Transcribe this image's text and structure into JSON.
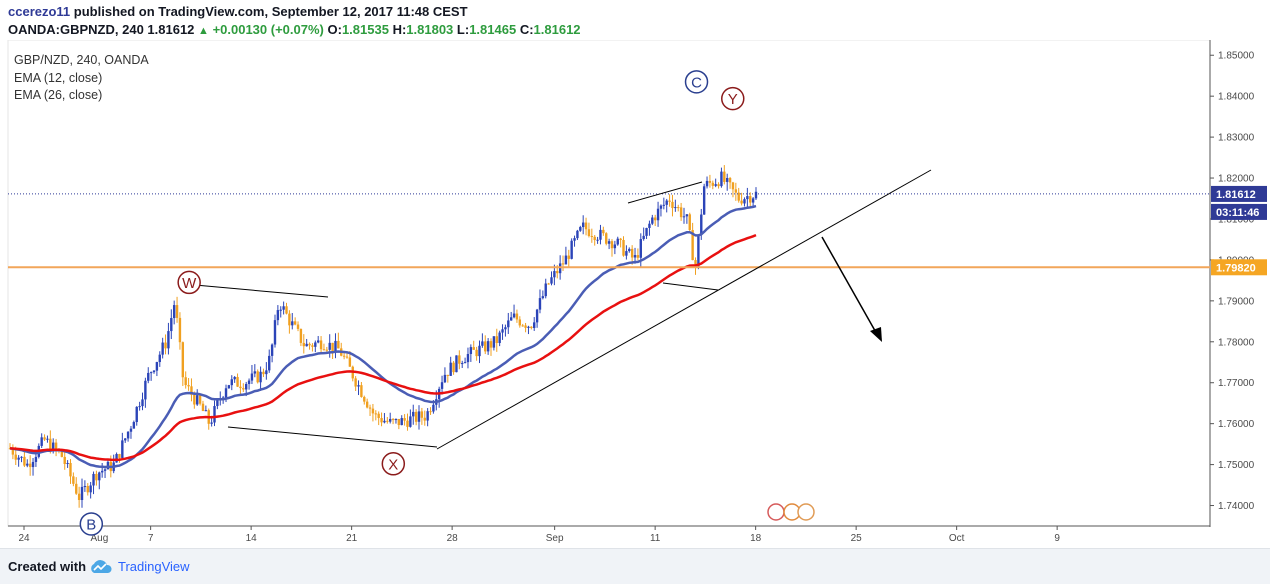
{
  "header": {
    "user": "ccerezo11",
    "published": "published on TradingView.com, September 12, 2017 11:48 CEST",
    "symbol": "OANDA:GBPNZD, 240",
    "last": "1.81612",
    "arrow": "▲",
    "change": "+0.00130 (+0.07%)",
    "o_label": "O:",
    "o_value": "1.81535",
    "h_label": "H:",
    "h_value": "1.81803",
    "l_label": "L:",
    "l_value": "1.81465",
    "c_label": "C:",
    "c_value": "1.81612"
  },
  "legend": {
    "series": "GBP/NZD, 240, OANDA",
    "ema12": "EMA (12, close)",
    "ema26": "EMA (26, close)"
  },
  "footer": {
    "made": "Created with",
    "brand": "TradingView"
  },
  "colors": {
    "up_candle": "#2b44b8",
    "down_candle": "#f0a020",
    "ema12": "#4a5db5",
    "ema26": "#e81010",
    "hline": "#f2a65a",
    "price_line": "#2f3a96",
    "axis_text": "#4a4a4a"
  },
  "chart_data": {
    "type": "candlestick",
    "series_name": "GBP/NZD, 240, OANDA",
    "ylim": [
      1.735,
      1.8525
    ],
    "y_ticks": [
      "1.85000",
      "1.84000",
      "1.83000",
      "1.82000",
      "1.81000",
      "1.80000",
      "1.79000",
      "1.78000",
      "1.77000",
      "1.76000",
      "1.75000",
      "1.74000"
    ],
    "x_ticks": [
      "24",
      "Aug",
      "7",
      "14",
      "21",
      "28",
      "Sep",
      "11",
      "18",
      "25",
      "Oct",
      "9"
    ],
    "price_tags": {
      "last_price": "1.81612",
      "countdown": "03:11:46",
      "level": "1.79820"
    },
    "horizontal_level": 1.7982,
    "last_price": 1.81612,
    "wave_labels": [
      {
        "label": "W",
        "date_idx": 14.5,
        "price": 1.7945
      },
      {
        "label": "X",
        "date_idx": 31.4,
        "price": 1.7502
      },
      {
        "label": "C",
        "date_idx": 56.5,
        "price": 1.8435
      },
      {
        "label": "Y",
        "date_idx": 59.5,
        "price": 1.8394
      },
      {
        "label": "B",
        "date_idx": 6.4,
        "price": 1.7355
      }
    ],
    "notes": "4-hour GBP/NZD candles, late July to 12 Sep 2017, with EMA 12 (blue) and EMA 26 (red); rising trendline under the Aug–Sep rally and a projected downside arrow."
  }
}
